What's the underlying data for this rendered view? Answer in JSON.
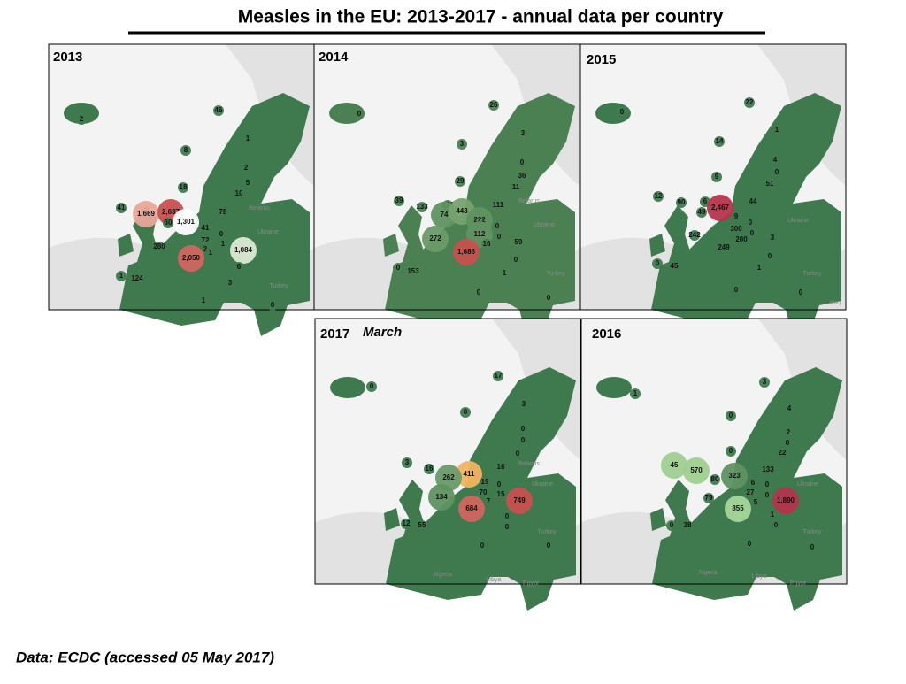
{
  "title": "Measles in the EU: 2013-2017 - annual data per country",
  "footer": "Data: ECDC (accessed 05 May 2017)",
  "panels": [
    {
      "year": "2013",
      "base_color": "#3f7a4f",
      "places": [
        "Belarus",
        "Ukraine",
        "Turkey"
      ],
      "labels": [
        {
          "text": "2",
          "color": "#3f7a4f"
        },
        {
          "text": "46",
          "color": "#3f7a4f"
        },
        {
          "text": "1",
          "color": "#3f7a4f"
        },
        {
          "text": "8",
          "color": "#3f7a4f"
        },
        {
          "text": "2",
          "color": "#3f7a4f"
        },
        {
          "text": "5",
          "color": "#3f7a4f"
        },
        {
          "text": "10",
          "color": "#3f7a4f"
        },
        {
          "text": "18",
          "color": "#3f7a4f"
        },
        {
          "text": "41",
          "color": "#3f7a4f"
        },
        {
          "text": "1,669",
          "color": "#e8a898"
        },
        {
          "text": "2,637",
          "color": "#c9504e"
        },
        {
          "text": "60",
          "color": "#3f7a4f"
        },
        {
          "text": "1,301",
          "color": "#ffffff"
        },
        {
          "text": "78",
          "color": "#3f7a4f"
        },
        {
          "text": "41",
          "color": "#3f7a4f"
        },
        {
          "text": "0",
          "color": "#3f7a4f"
        },
        {
          "text": "72",
          "color": "#3f7a4f"
        },
        {
          "text": "1",
          "color": "#3f7a4f"
        },
        {
          "text": "2",
          "color": "#3f7a4f"
        },
        {
          "text": "1",
          "color": "#3f7a4f"
        },
        {
          "text": "1,084",
          "color": "#dbe9d4"
        },
        {
          "text": "280",
          "color": "#3f7a4f"
        },
        {
          "text": "2,050",
          "color": "#d0665e"
        },
        {
          "text": "6",
          "color": "#3f7a4f"
        },
        {
          "text": "3",
          "color": "#3f7a4f"
        },
        {
          "text": "1",
          "color": "#3f7a4f"
        },
        {
          "text": "124",
          "color": "#3f7a4f"
        },
        {
          "text": "1",
          "color": "#3f7a4f"
        },
        {
          "text": "0",
          "color": "#3f7a4f"
        }
      ]
    },
    {
      "year": "2014",
      "base_color": "#4b8152",
      "places": [
        "Belarus",
        "Ukraine",
        "Turkey"
      ],
      "labels": [
        {
          "text": "0",
          "color": "#4b8152"
        },
        {
          "text": "26",
          "color": "#4b8152"
        },
        {
          "text": "3",
          "color": "#4b8152"
        },
        {
          "text": "3",
          "color": "#4b8152"
        },
        {
          "text": "0",
          "color": "#4b8152"
        },
        {
          "text": "36",
          "color": "#4b8152"
        },
        {
          "text": "11",
          "color": "#4b8152"
        },
        {
          "text": "29",
          "color": "#4b8152"
        },
        {
          "text": "39",
          "color": "#4b8152"
        },
        {
          "text": "133",
          "color": "#4b8152"
        },
        {
          "text": "144",
          "color": "#4b8152"
        },
        {
          "text": "111",
          "color": "#4b8152"
        },
        {
          "text": "74",
          "color": "#5f9262"
        },
        {
          "text": "443",
          "color": "#77a26f"
        },
        {
          "text": "222",
          "color": "#5f9262"
        },
        {
          "text": "0",
          "color": "#4b8152"
        },
        {
          "text": "112",
          "color": "#5f9262"
        },
        {
          "text": "0",
          "color": "#4b8152"
        },
        {
          "text": "272",
          "color": "#6a9a68"
        },
        {
          "text": "16",
          "color": "#4b8152"
        },
        {
          "text": "59",
          "color": "#4b8152"
        },
        {
          "text": "1,686",
          "color": "#c7504c"
        },
        {
          "text": "0",
          "color": "#4b8152"
        },
        {
          "text": "0",
          "color": "#4b8152"
        },
        {
          "text": "153",
          "color": "#4b8152"
        },
        {
          "text": "1",
          "color": "#4b8152"
        },
        {
          "text": "0",
          "color": "#4b8152"
        },
        {
          "text": "0",
          "color": "#4b8152"
        }
      ]
    },
    {
      "year": "2015",
      "base_color": "#3f7a4f",
      "places": [
        "Ukraine",
        "Turkey",
        "Iraq"
      ],
      "labels": [
        {
          "text": "0",
          "color": "#3f7a4f"
        },
        {
          "text": "22",
          "color": "#3f7a4f"
        },
        {
          "text": "1",
          "color": "#3f7a4f"
        },
        {
          "text": "14",
          "color": "#3f7a4f"
        },
        {
          "text": "4",
          "color": "#3f7a4f"
        },
        {
          "text": "0",
          "color": "#3f7a4f"
        },
        {
          "text": "51",
          "color": "#3f7a4f"
        },
        {
          "text": "9",
          "color": "#3f7a4f"
        },
        {
          "text": "12",
          "color": "#3f7a4f"
        },
        {
          "text": "90",
          "color": "#3f7a4f"
        },
        {
          "text": "6",
          "color": "#3f7a4f"
        },
        {
          "text": "44",
          "color": "#3f7a4f"
        },
        {
          "text": "49",
          "color": "#3f7a4f"
        },
        {
          "text": "2,467",
          "color": "#b5344d"
        },
        {
          "text": "9",
          "color": "#3f7a4f"
        },
        {
          "text": "0",
          "color": "#3f7a4f"
        },
        {
          "text": "300",
          "color": "#3f7a4f"
        },
        {
          "text": "0",
          "color": "#3f7a4f"
        },
        {
          "text": "242",
          "color": "#3f7a4f"
        },
        {
          "text": "200",
          "color": "#3f7a4f"
        },
        {
          "text": "3",
          "color": "#3f7a4f"
        },
        {
          "text": "249",
          "color": "#3f7a4f"
        },
        {
          "text": "0",
          "color": "#3f7a4f"
        },
        {
          "text": "0",
          "color": "#3f7a4f"
        },
        {
          "text": "45",
          "color": "#3f7a4f"
        },
        {
          "text": "1",
          "color": "#3f7a4f"
        },
        {
          "text": "0",
          "color": "#3f7a4f"
        },
        {
          "text": "0",
          "color": "#3f7a4f"
        }
      ]
    },
    {
      "year": "2017",
      "note": "March",
      "base_color": "#3f7a4f",
      "places": [
        "Belarus",
        "Ukraine",
        "Turkey",
        "Algeria",
        "Libya",
        "Egypt"
      ],
      "labels": [
        {
          "text": "0",
          "color": "#3f7a4f"
        },
        {
          "text": "17",
          "color": "#3f7a4f"
        },
        {
          "text": "3",
          "color": "#3f7a4f"
        },
        {
          "text": "0",
          "color": "#3f7a4f"
        },
        {
          "text": "0",
          "color": "#3f7a4f"
        },
        {
          "text": "0",
          "color": "#3f7a4f"
        },
        {
          "text": "0",
          "color": "#3f7a4f"
        },
        {
          "text": "3",
          "color": "#3f7a4f"
        },
        {
          "text": "16",
          "color": "#3f7a4f"
        },
        {
          "text": "16",
          "color": "#3f7a4f"
        },
        {
          "text": "411",
          "color": "#f2b45e"
        },
        {
          "text": "262",
          "color": "#6a9a68"
        },
        {
          "text": "19",
          "color": "#3f7a4f"
        },
        {
          "text": "0",
          "color": "#3f7a4f"
        },
        {
          "text": "70",
          "color": "#3f7a4f"
        },
        {
          "text": "15",
          "color": "#3f7a4f"
        },
        {
          "text": "134",
          "color": "#5f9262"
        },
        {
          "text": "7",
          "color": "#3f7a4f"
        },
        {
          "text": "749",
          "color": "#c9504e"
        },
        {
          "text": "684",
          "color": "#d0665e"
        },
        {
          "text": "0",
          "color": "#3f7a4f"
        },
        {
          "text": "12",
          "color": "#3f7a4f"
        },
        {
          "text": "55",
          "color": "#3f7a4f"
        },
        {
          "text": "0",
          "color": "#3f7a4f"
        },
        {
          "text": "0",
          "color": "#3f7a4f"
        },
        {
          "text": "0",
          "color": "#3f7a4f"
        }
      ]
    },
    {
      "year": "2016",
      "base_color": "#3f7a4f",
      "places": [
        "Ukraine",
        "Turkey",
        "Algeria",
        "Libya",
        "Egypt"
      ],
      "labels": [
        {
          "text": "1",
          "color": "#3f7a4f"
        },
        {
          "text": "3",
          "color": "#3f7a4f"
        },
        {
          "text": "4",
          "color": "#3f7a4f"
        },
        {
          "text": "0",
          "color": "#3f7a4f"
        },
        {
          "text": "2",
          "color": "#3f7a4f"
        },
        {
          "text": "0",
          "color": "#3f7a4f"
        },
        {
          "text": "22",
          "color": "#3f7a4f"
        },
        {
          "text": "0",
          "color": "#3f7a4f"
        },
        {
          "text": "45",
          "color": "#9fcf8f"
        },
        {
          "text": "570",
          "color": "#9fcf8f"
        },
        {
          "text": "133",
          "color": "#3f7a4f"
        },
        {
          "text": "323",
          "color": "#5f9262"
        },
        {
          "text": "80",
          "color": "#3f7a4f"
        },
        {
          "text": "6",
          "color": "#3f7a4f"
        },
        {
          "text": "0",
          "color": "#3f7a4f"
        },
        {
          "text": "27",
          "color": "#3f7a4f"
        },
        {
          "text": "79",
          "color": "#3f7a4f"
        },
        {
          "text": "0",
          "color": "#3f7a4f"
        },
        {
          "text": "5",
          "color": "#3f7a4f"
        },
        {
          "text": "1,890",
          "color": "#b5344d"
        },
        {
          "text": "855",
          "color": "#a8d69a"
        },
        {
          "text": "1",
          "color": "#3f7a4f"
        },
        {
          "text": "0",
          "color": "#3f7a4f"
        },
        {
          "text": "38",
          "color": "#3f7a4f"
        },
        {
          "text": "0",
          "color": "#3f7a4f"
        },
        {
          "text": "0",
          "color": "#3f7a4f"
        },
        {
          "text": "0",
          "color": "#3f7a4f"
        }
      ]
    }
  ]
}
